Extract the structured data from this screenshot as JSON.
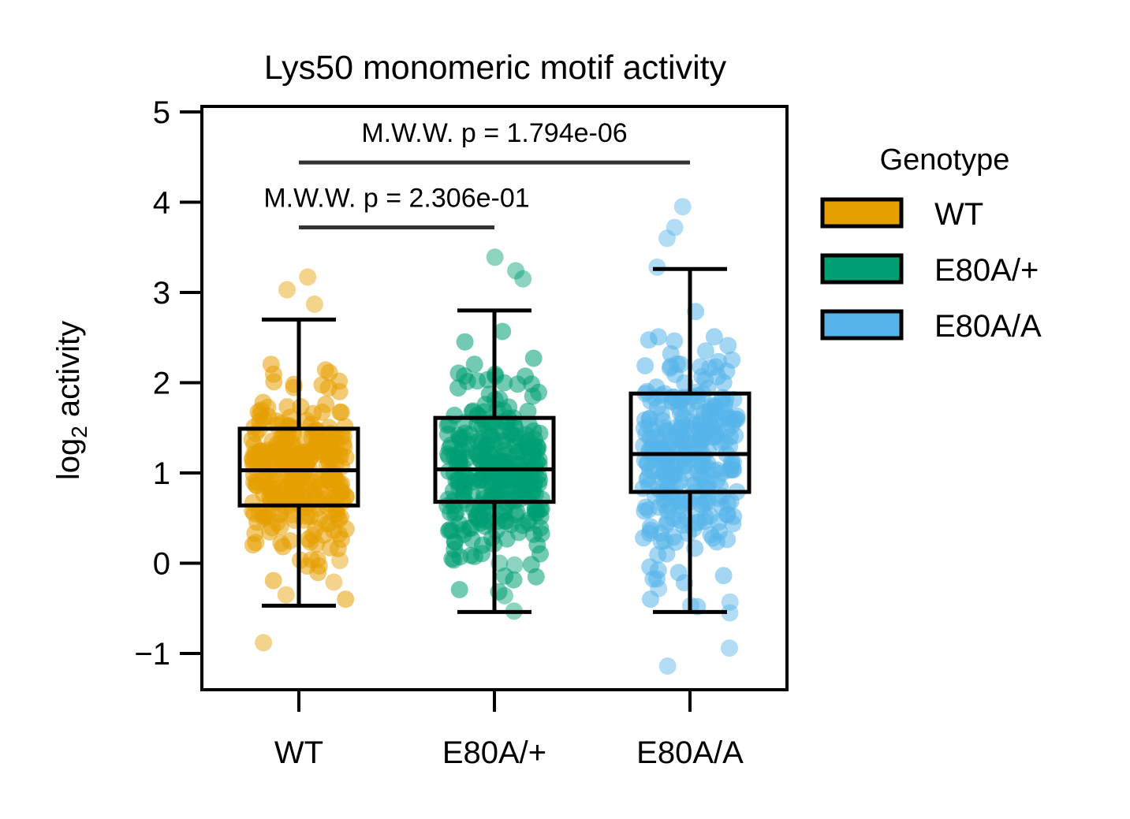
{
  "chart_data": {
    "type": "box",
    "title": "Lys50 monomeric motif activity",
    "xlabel": "",
    "ylabel": "log",
    "ylabel_sub": "2",
    "ylabel_rest": " activity",
    "ylim": [
      -1.4,
      5.05
    ],
    "yticks": [
      -1,
      0,
      1,
      2,
      3,
      4,
      5
    ],
    "ytick_labels": [
      "−1",
      "0",
      "1",
      "2",
      "3",
      "4",
      "5"
    ],
    "categories": [
      "WT",
      "E80A/+",
      "E80A/A"
    ],
    "grid": false,
    "legend": {
      "title": "Genotype",
      "placement": "outside-right",
      "entries": [
        {
          "label": "WT",
          "color": "#E69F00"
        },
        {
          "label": "E80A/+",
          "color": "#009E73"
        },
        {
          "label": "E80A/A",
          "color": "#56B4E9"
        }
      ]
    },
    "boxes": [
      {
        "name": "WT",
        "color": "#E69F00",
        "whisker_low": -0.47,
        "q1": 0.64,
        "median": 1.03,
        "q3": 1.49,
        "whisker_high": 2.7
      },
      {
        "name": "E80A/+",
        "color": "#009E73",
        "whisker_low": -0.54,
        "q1": 0.68,
        "median": 1.04,
        "q3": 1.61,
        "whisker_high": 2.8
      },
      {
        "name": "E80A/A",
        "color": "#56B4E9",
        "whisker_low": -0.54,
        "q1": 0.79,
        "median": 1.21,
        "q3": 1.88,
        "whisker_high": 3.26
      }
    ],
    "outliers": [
      {
        "group": 0,
        "values": [
          3.17,
          3.03,
          2.87,
          -0.35,
          -0.88,
          0.03,
          -0.21
        ]
      },
      {
        "group": 1,
        "values": [
          3.39,
          3.24,
          3.15,
          -0.53,
          -0.36,
          0.0,
          -0.02
        ]
      },
      {
        "group": 2,
        "values": [
          3.95,
          3.72,
          3.6,
          3.28,
          -0.94,
          -1.14,
          -0.28,
          -0.43,
          -0.55,
          -0.47
        ]
      }
    ],
    "annotations": [
      {
        "text": "M.W.W. p = 2.306e-01",
        "from": 0,
        "to": 1,
        "y": 3.72
      },
      {
        "text": "M.W.W. p = 1.794e-06",
        "from": 0,
        "to": 2,
        "y": 4.44
      }
    ]
  }
}
